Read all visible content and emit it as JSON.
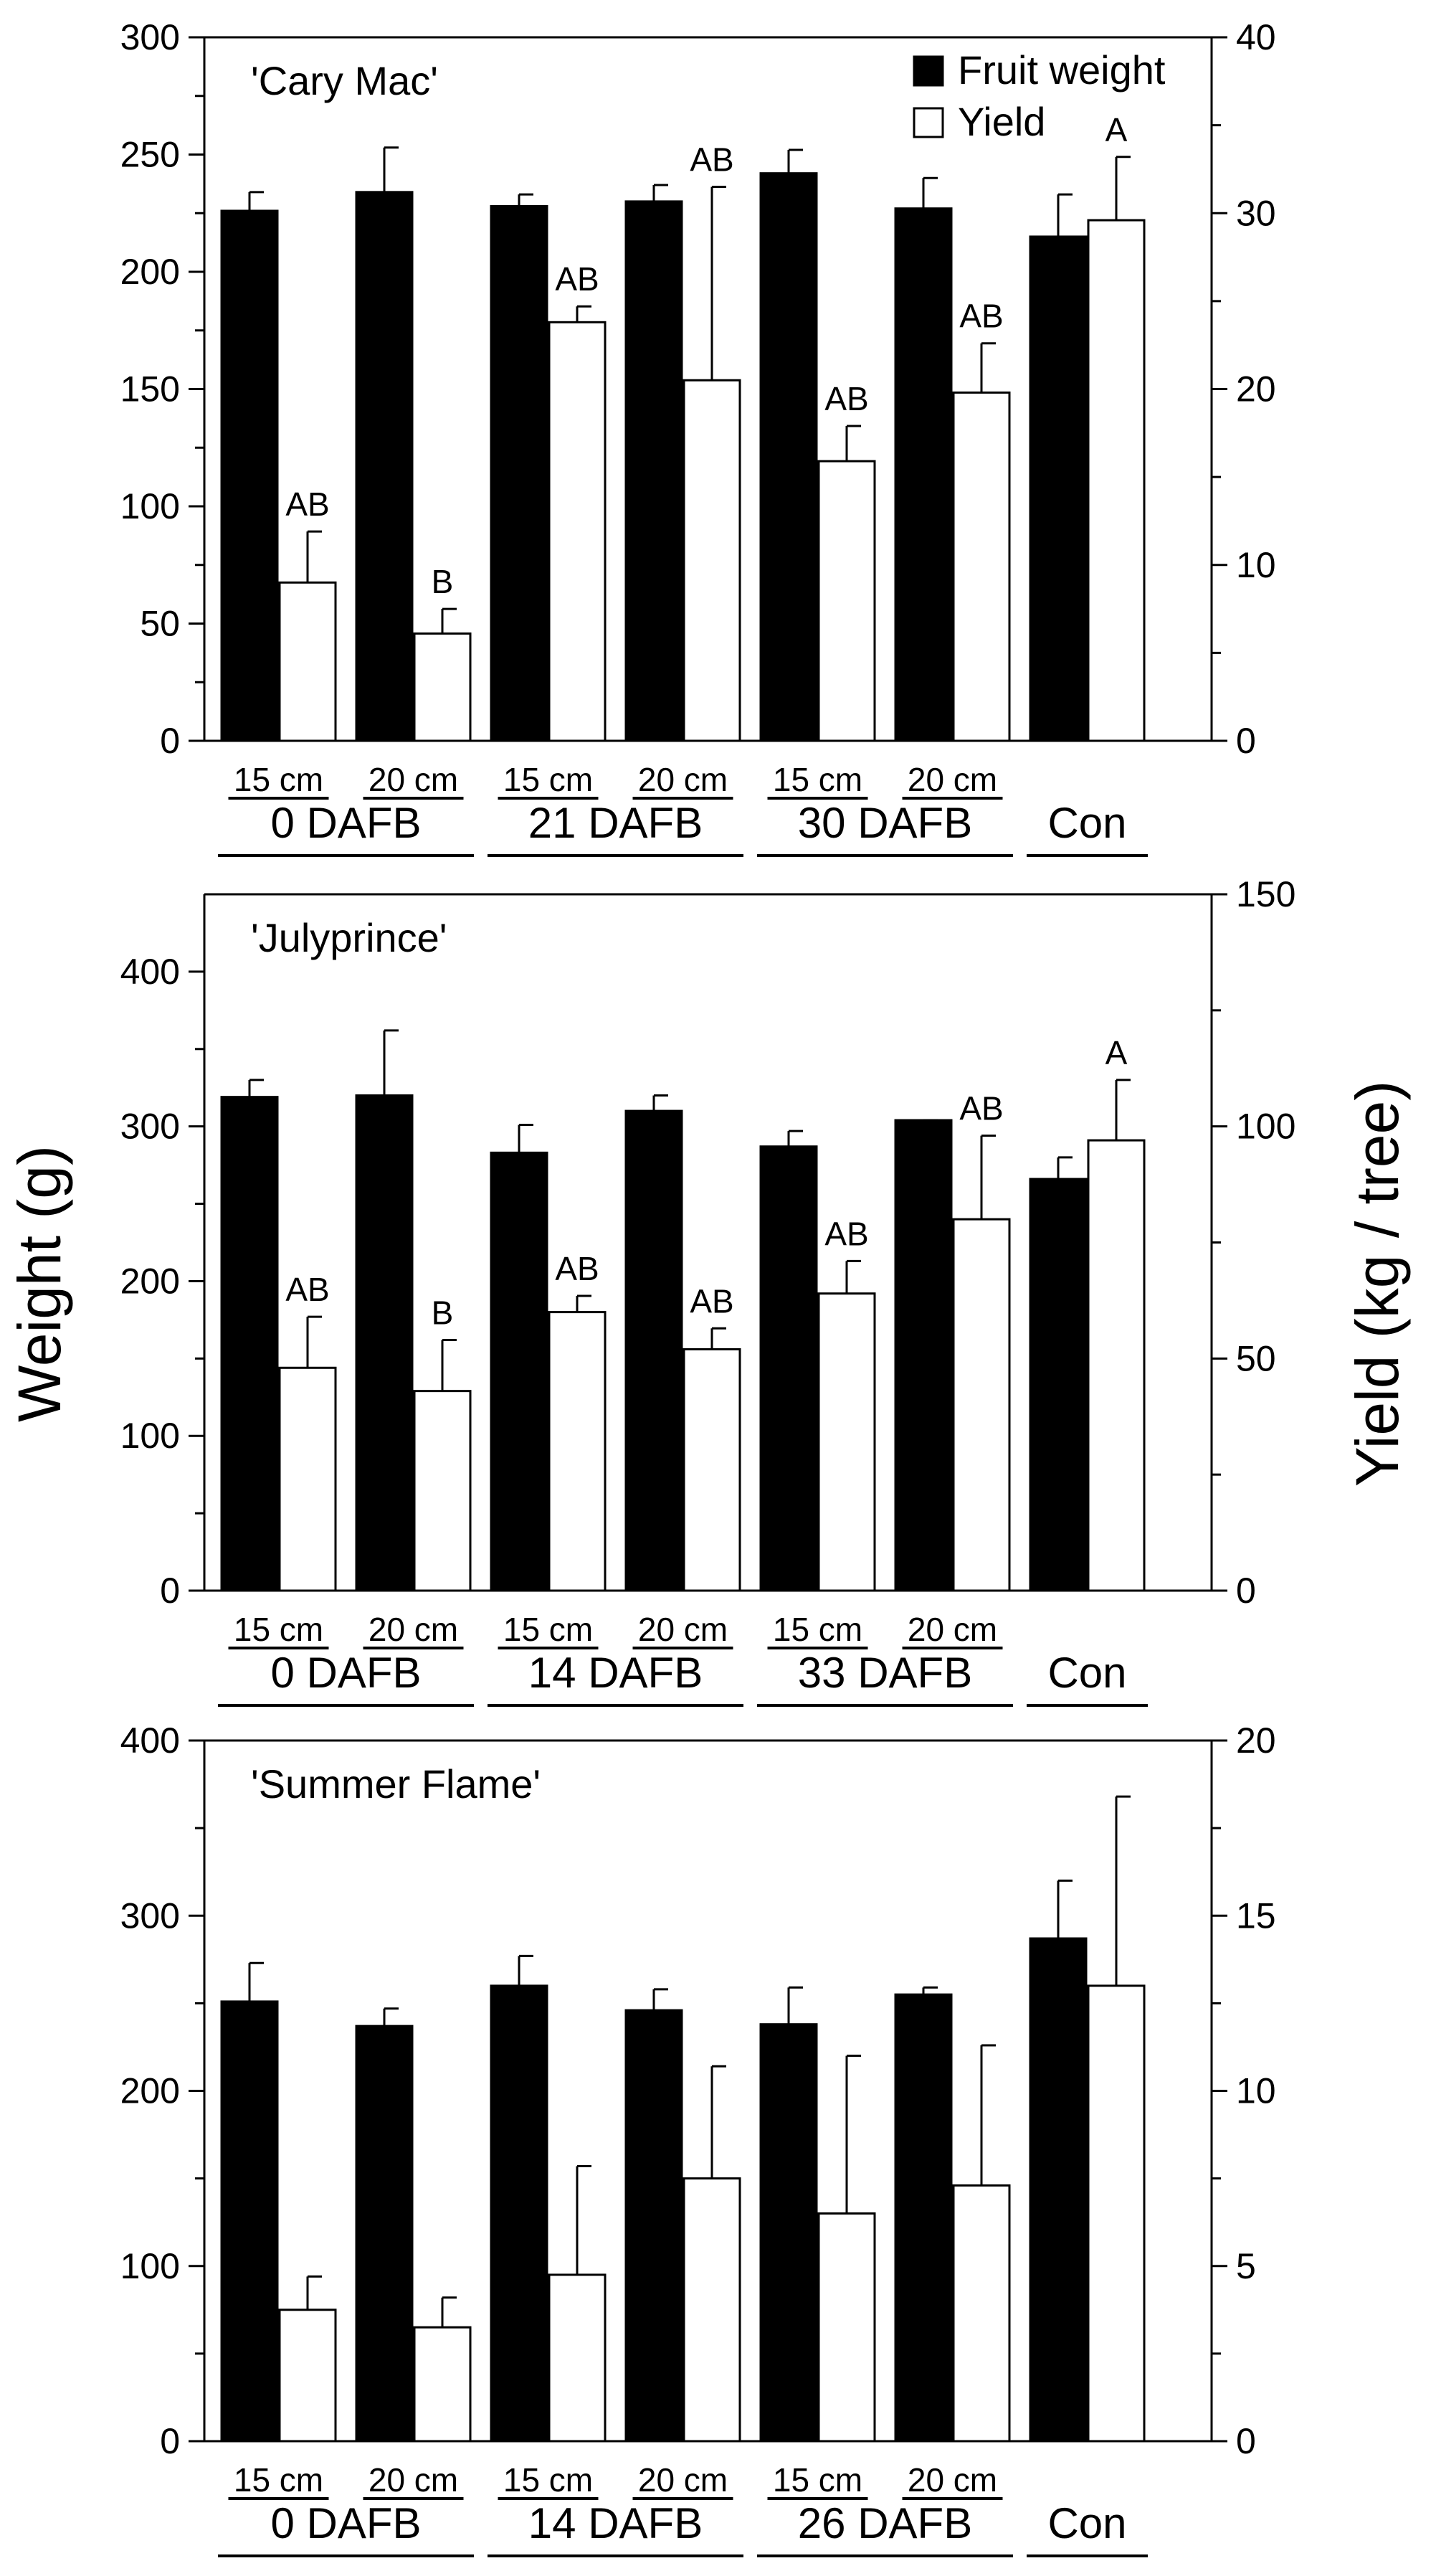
{
  "figure": {
    "y_axis_left_label": "Weight (g)",
    "y_axis_right_label": "Yield (kg / tree)",
    "legend": [
      {
        "label": "Fruit weight",
        "fill": "#000000"
      },
      {
        "label": "Yield",
        "fill": "#ffffff"
      }
    ]
  },
  "chart_data": [
    {
      "type": "bar",
      "title": "'Cary Mac'",
      "categories": [
        "15 cm",
        "20 cm",
        "15 cm",
        "20 cm",
        "15 cm",
        "20 cm",
        ""
      ],
      "groups": [
        {
          "label": "0 DAFB",
          "members": [
            0,
            1
          ]
        },
        {
          "label": "21 DAFB",
          "members": [
            2,
            3
          ]
        },
        {
          "label": "30 DAFB",
          "members": [
            4,
            5
          ]
        },
        {
          "label": "Con",
          "members": [
            6
          ]
        }
      ],
      "ylim_left": [
        0,
        300
      ],
      "yticks_left": [
        0,
        50,
        100,
        150,
        200,
        250,
        300
      ],
      "ylim_right": [
        0,
        40
      ],
      "yticks_right": [
        0,
        10,
        20,
        30,
        40
      ],
      "series": [
        {
          "name": "Fruit weight",
          "axis": "left",
          "values": [
            226,
            234,
            228,
            230,
            242,
            227,
            215
          ],
          "errors": [
            8,
            19,
            5,
            7,
            10,
            13,
            18
          ]
        },
        {
          "name": "Yield",
          "axis": "right",
          "values": [
            9.0,
            6.1,
            23.8,
            20.5,
            15.9,
            19.8,
            29.6
          ],
          "errors": [
            2.9,
            1.4,
            0.9,
            11.0,
            2.0,
            2.8,
            3.6
          ]
        }
      ],
      "significance": [
        "AB",
        "B",
        "AB",
        "AB",
        "AB",
        "AB",
        "A"
      ],
      "legend_shown": true
    },
    {
      "type": "bar",
      "title": "'Julyprince'",
      "categories": [
        "15 cm",
        "20 cm",
        "15 cm",
        "20 cm",
        "15 cm",
        "20 cm",
        ""
      ],
      "groups": [
        {
          "label": "0 DAFB",
          "members": [
            0,
            1
          ]
        },
        {
          "label": "14 DAFB",
          "members": [
            2,
            3
          ]
        },
        {
          "label": "33 DAFB",
          "members": [
            4,
            5
          ]
        },
        {
          "label": "Con",
          "members": [
            6
          ]
        }
      ],
      "ylim_left": [
        0,
        450
      ],
      "yticks_left": [
        0,
        100,
        200,
        300,
        400
      ],
      "ylim_right": [
        0,
        150
      ],
      "yticks_right": [
        0,
        50,
        100,
        150
      ],
      "series": [
        {
          "name": "Fruit weight",
          "axis": "left",
          "values": [
            319,
            320,
            283,
            310,
            287,
            304,
            266
          ],
          "errors": [
            11,
            42,
            18,
            10,
            10,
            0,
            14
          ]
        },
        {
          "name": "Yield",
          "axis": "right",
          "values": [
            48,
            43,
            60,
            52,
            64,
            80,
            97
          ],
          "errors": [
            11,
            11,
            3.5,
            4.5,
            7,
            18,
            13
          ]
        }
      ],
      "significance": [
        "AB",
        "B",
        "AB",
        "AB",
        "AB",
        "AB",
        "A"
      ],
      "legend_shown": false
    },
    {
      "type": "bar",
      "title": "'Summer Flame'",
      "categories": [
        "15 cm",
        "20 cm",
        "15 cm",
        "20 cm",
        "15 cm",
        "20 cm",
        ""
      ],
      "groups": [
        {
          "label": "0 DAFB",
          "members": [
            0,
            1
          ]
        },
        {
          "label": "14 DAFB",
          "members": [
            2,
            3
          ]
        },
        {
          "label": "26 DAFB",
          "members": [
            4,
            5
          ]
        },
        {
          "label": "Con",
          "members": [
            6
          ]
        }
      ],
      "ylim_left": [
        0,
        400
      ],
      "yticks_left": [
        0,
        100,
        200,
        300,
        400
      ],
      "ylim_right": [
        0,
        20
      ],
      "yticks_right": [
        0,
        5,
        10,
        15,
        20
      ],
      "series": [
        {
          "name": "Fruit weight",
          "axis": "left",
          "values": [
            251,
            237,
            260,
            246,
            238,
            255,
            287
          ],
          "errors": [
            22,
            10,
            17,
            12,
            21,
            4,
            33
          ]
        },
        {
          "name": "Yield",
          "axis": "right",
          "values": [
            3.75,
            3.25,
            4.75,
            7.5,
            6.5,
            7.3,
            13.0
          ],
          "errors": [
            0.95,
            0.85,
            3.1,
            3.2,
            4.5,
            4.0,
            5.4
          ]
        }
      ],
      "significance": [
        "",
        "",
        "",
        "",
        "",
        "",
        ""
      ],
      "legend_shown": false
    }
  ]
}
